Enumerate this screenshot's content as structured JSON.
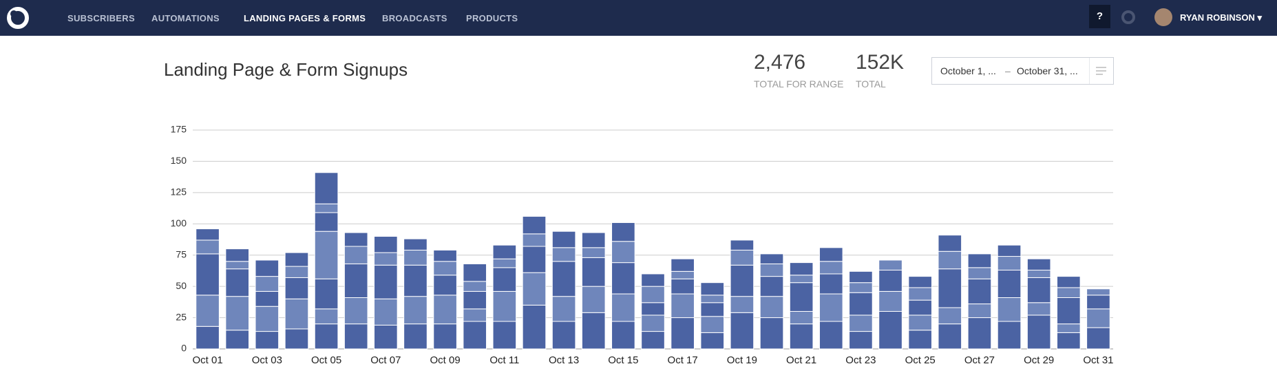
{
  "nav": {
    "items": [
      "SUBSCRIBERS",
      "AUTOMATIONS",
      "LANDING PAGES & FORMS",
      "BROADCASTS",
      "PRODUCTS"
    ],
    "active": 2,
    "help": "?",
    "user": "RYAN ROBINSON"
  },
  "stats": [
    {
      "value": "2,476",
      "label": "TOTAL FOR RANGE"
    },
    {
      "value": "152K",
      "label": "TOTAL"
    }
  ],
  "date_range": {
    "start": "October 1, ...",
    "separator": "–",
    "end": "October 31, ..."
  },
  "chart_data": {
    "type": "stacked_bar",
    "title": "Landing Page & Form Signups",
    "categories": [
      "Oct 01",
      null,
      "Oct 03",
      null,
      "Oct 05",
      null,
      "Oct 07",
      null,
      "Oct 09",
      null,
      "Oct 11",
      null,
      "Oct 13",
      null,
      "Oct 15",
      null,
      "Oct 17",
      null,
      "Oct 19",
      null,
      "Oct 21",
      null,
      "Oct 23",
      null,
      "Oct 25",
      null,
      "Oct 27",
      null,
      "Oct 29",
      null,
      "Oct 31"
    ],
    "stacks": [
      [
        18,
        25,
        33,
        11,
        9
      ],
      [
        15,
        27,
        22,
        6,
        10
      ],
      [
        14,
        20,
        12,
        12,
        13
      ],
      [
        16,
        24,
        17,
        9,
        11
      ],
      [
        20,
        12,
        24,
        38,
        15,
        7,
        25
      ],
      [
        20,
        21,
        27,
        14,
        11
      ],
      [
        19,
        21,
        27,
        10,
        13
      ],
      [
        20,
        22,
        25,
        12,
        9
      ],
      [
        20,
        23,
        16,
        11,
        9
      ],
      [
        22,
        10,
        14,
        8,
        14
      ],
      [
        22,
        24,
        19,
        7,
        11
      ],
      [
        35,
        26,
        21,
        10,
        14
      ],
      [
        22,
        20,
        28,
        11,
        13
      ],
      [
        29,
        21,
        23,
        8,
        12
      ],
      [
        22,
        22,
        25,
        17,
        15
      ],
      [
        14,
        13,
        10,
        13,
        10
      ],
      [
        25,
        19,
        12,
        6,
        10
      ],
      [
        13,
        13,
        11,
        6,
        10
      ],
      [
        29,
        13,
        25,
        12,
        8
      ],
      [
        25,
        17,
        16,
        10,
        8
      ],
      [
        20,
        10,
        23,
        6,
        10
      ],
      [
        22,
        22,
        16,
        10,
        11
      ],
      [
        14,
        13,
        18,
        8,
        9
      ],
      [
        30,
        16,
        17,
        8
      ],
      [
        15,
        12,
        12,
        10,
        9
      ],
      [
        20,
        13,
        31,
        14,
        13
      ],
      [
        25,
        11,
        20,
        9,
        11
      ],
      [
        22,
        19,
        22,
        11,
        9
      ],
      [
        27,
        10,
        20,
        6,
        9
      ],
      [
        13,
        7,
        21,
        8,
        9
      ],
      [
        17,
        15,
        11,
        5
      ]
    ],
    "colors": [
      "#4b63a3",
      "#6f86bb"
    ],
    "ylim": [
      0,
      175
    ],
    "yticks": [
      0,
      25,
      50,
      75,
      100,
      125,
      150,
      175
    ],
    "grid": true
  }
}
